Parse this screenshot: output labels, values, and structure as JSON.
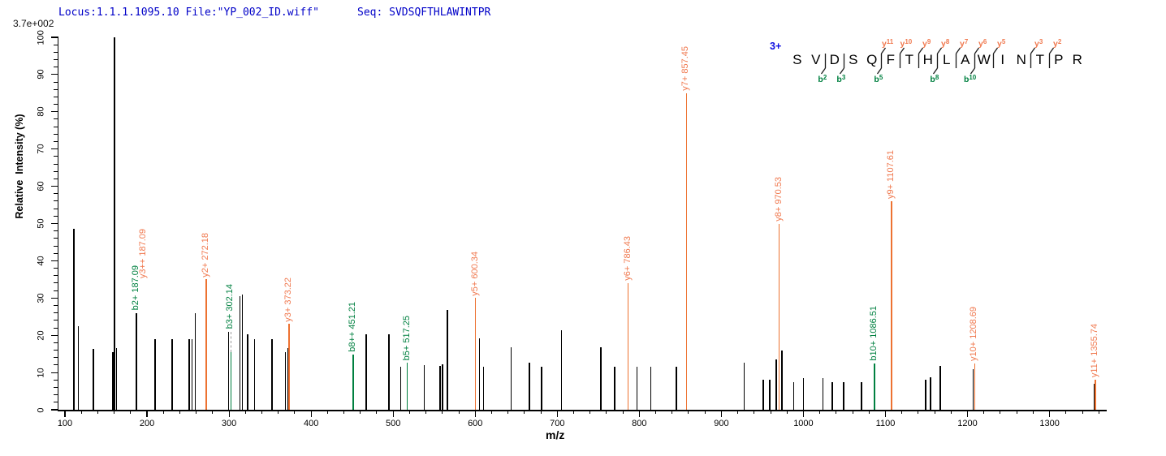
{
  "header": {
    "locus": "Locus:1.1.1.1095.10 File:\"YP_002_ID.wiff\"",
    "seq": "Seq: SVDSQFTHLAWINTPR",
    "base_peak_intensity": "3.7e+002"
  },
  "axes": {
    "x_label": "m/z",
    "y_label": "Relative  Intensity (%)",
    "x_major_ticks": [
      100,
      200,
      300,
      400,
      500,
      600,
      700,
      800,
      900,
      1000,
      1100,
      1200,
      1300
    ],
    "x_minor_step": 20,
    "x_min": 100,
    "x_max": 1360,
    "y_major_ticks": [
      0,
      10,
      20,
      30,
      40,
      50,
      60,
      70,
      80,
      90,
      100
    ],
    "y_minor_step": 2,
    "y_min": 0,
    "y_max": 100
  },
  "colors": {
    "header_blue": "#0000C8",
    "charge_blue": "#0F0FE0",
    "y_ion_line": "#ED7231",
    "y_ion_text": "#F0794F",
    "b_ion_line": "#008040",
    "b_ion_text": "#008040",
    "peak_black": "#000000",
    "leader_gray": "#9a9a9a"
  },
  "sequence": {
    "charge": "3+",
    "items": [
      {
        "r": "S"
      },
      {
        "r": "V",
        "b": "2"
      },
      {
        "r": "D",
        "b": "3"
      },
      {
        "r": "S"
      },
      {
        "r": "Q",
        "b": "5",
        "y": "11"
      },
      {
        "r": "F",
        "y": "10"
      },
      {
        "r": "T",
        "y": "9"
      },
      {
        "r": "H",
        "b": "8",
        "y": "8"
      },
      {
        "r": "L",
        "y": "7"
      },
      {
        "r": "A",
        "b": "10",
        "y": "6"
      },
      {
        "r": "W",
        "y": "5"
      },
      {
        "r": "I"
      },
      {
        "r": "N",
        "y": "3"
      },
      {
        "r": "T",
        "y": "2"
      },
      {
        "r": "P"
      },
      {
        "r": "R"
      }
    ]
  },
  "chart_data": {
    "type": "bar",
    "style": "centroided MS/MS stick spectrum",
    "title": "MS/MS spectrum of SVDSQFTHLAWINTPR (3+), base peak 3.7e+002",
    "xlabel": "m/z",
    "ylabel": "Relative  Intensity (%)",
    "xlim": [
      100,
      1360
    ],
    "ylim": [
      0,
      100
    ],
    "grid": false,
    "labeled_peaks": [
      {
        "ion": "b2+",
        "mz": 187.09,
        "rel_int": 26,
        "series": "b",
        "label": "b2+ 187.09",
        "peak_color": "black"
      },
      {
        "ion": "y3++",
        "mz": 187.09,
        "rel_int": 26,
        "series": "y",
        "label": "y3++ 187.09",
        "peak_color": "none",
        "label_dx": 9,
        "label_dy": 40
      },
      {
        "ion": "y2+",
        "mz": 272.18,
        "rel_int": 35,
        "series": "y",
        "label": "y2+ 272.18"
      },
      {
        "ion": "b3+",
        "mz": 302.14,
        "rel_int": 15.5,
        "series": "b",
        "label": "b3+ 302.14",
        "leader_to": 21
      },
      {
        "ion": "y3+",
        "mz": 373.22,
        "rel_int": 23,
        "series": "y",
        "label": "y3+ 373.22"
      },
      {
        "ion": "b8++",
        "mz": 451.21,
        "rel_int": 14.8,
        "series": "b",
        "label": "b8++ 451.21"
      },
      {
        "ion": "b5+",
        "mz": 517.25,
        "rel_int": 12.6,
        "series": "b",
        "label": "b5+ 517.25"
      },
      {
        "ion": "y5+",
        "mz": 600.34,
        "rel_int": 30,
        "series": "y",
        "label": "y5+ 600.34"
      },
      {
        "ion": "y6+",
        "mz": 786.43,
        "rel_int": 34,
        "series": "y",
        "label": "y6+ 786.43"
      },
      {
        "ion": "y7+",
        "mz": 857.45,
        "rel_int": 85,
        "series": "y",
        "label": "y7+ 857.45"
      },
      {
        "ion": "y8+",
        "mz": 970.53,
        "rel_int": 50,
        "series": "y",
        "label": "y8+ 970.53"
      },
      {
        "ion": "b10+",
        "mz": 1086.51,
        "rel_int": 12.4,
        "series": "b",
        "label": "b10+ 1086.51"
      },
      {
        "ion": "y9+",
        "mz": 1107.61,
        "rel_int": 56,
        "series": "y",
        "label": "y9+ 1107.61"
      },
      {
        "ion": "y10+",
        "mz": 1208.69,
        "rel_int": 12.4,
        "series": "y",
        "label": "y10+ 1208.69"
      },
      {
        "ion": "y11+",
        "mz": 1355.74,
        "rel_int": 8,
        "series": "y",
        "label": "y11+ 1355.74"
      }
    ],
    "unlabeled_peaks": [
      [
        111,
        48.5
      ],
      [
        116.5,
        22.5
      ],
      [
        134.5,
        16.3
      ],
      [
        158.3,
        15.5
      ],
      [
        160.3,
        100
      ],
      [
        163,
        16.5
      ],
      [
        210,
        19
      ],
      [
        230.5,
        19
      ],
      [
        251.5,
        19
      ],
      [
        255,
        19
      ],
      [
        259,
        26
      ],
      [
        299.5,
        21
      ],
      [
        313.5,
        30.5
      ],
      [
        316,
        31
      ],
      [
        322.5,
        20.3
      ],
      [
        331,
        19
      ],
      [
        352.5,
        19
      ],
      [
        368.8,
        15.5
      ],
      [
        371.5,
        16.5
      ],
      [
        467,
        20.3
      ],
      [
        495,
        20.3
      ],
      [
        509,
        11.5
      ],
      [
        538,
        12
      ],
      [
        557,
        11.8
      ],
      [
        560,
        12.3
      ],
      [
        566,
        26.8
      ],
      [
        605,
        19.2
      ],
      [
        610,
        11.5
      ],
      [
        644,
        16.8
      ],
      [
        666,
        12.6
      ],
      [
        681,
        11.5
      ],
      [
        705,
        21.4
      ],
      [
        753,
        16.8
      ],
      [
        770,
        11.5
      ],
      [
        797,
        11.5
      ],
      [
        814,
        11.5
      ],
      [
        845,
        11.5
      ],
      [
        928,
        12.6
      ],
      [
        951,
        8
      ],
      [
        959,
        8
      ],
      [
        967,
        13.5
      ],
      [
        974,
        15.9
      ],
      [
        988,
        7.5
      ],
      [
        1000,
        8.5
      ],
      [
        1024,
        8.5
      ],
      [
        1035,
        7.5
      ],
      [
        1049,
        7.5
      ],
      [
        1071,
        7.5
      ],
      [
        1149,
        8
      ],
      [
        1155,
        8.7
      ],
      [
        1167,
        11.7
      ],
      [
        1207,
        11
      ],
      [
        1355,
        7
      ]
    ]
  }
}
